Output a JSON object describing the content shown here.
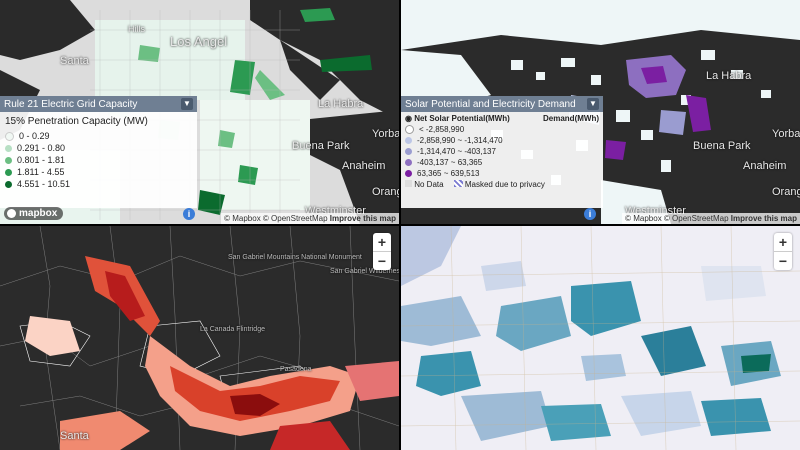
{
  "panels": {
    "grid_capacity": {
      "legend": {
        "title": "Rule 21 Electric Grid Capacity",
        "subtitle": "15% Penetration Capacity (MW)",
        "items": [
          {
            "label": "0 - 0.29",
            "color": "#f1f8f4"
          },
          {
            "label": "0.291 - 0.80",
            "color": "#b7dfc4"
          },
          {
            "label": "0.801 - 1.81",
            "color": "#6cbf83"
          },
          {
            "label": "1.811 - 4.55",
            "color": "#2c9a52"
          },
          {
            "label": "4.551 - 10.51",
            "color": "#0b6b2e"
          }
        ]
      },
      "places": [
        "Santa",
        "Hills",
        "Los Angel",
        "La Habra",
        "Buena Park",
        "Yorba",
        "Anaheim",
        "Orang",
        "Westminster"
      ],
      "attribution": {
        "mapbox": "© Mapbox",
        "osm": "© OpenStreetMap",
        "improve": "Improve this map"
      },
      "logo": "mapbox",
      "info": "i"
    },
    "solar_potential": {
      "legend": {
        "title": "Solar Potential and Electricity Demand",
        "header_left": "Net Solar Potential(MWh)",
        "header_right": "Demand(MWh)",
        "items": [
          {
            "label": "< -2,858,990",
            "color": "#ffffff"
          },
          {
            "label": "-2,858,990 ~ -1,314,470",
            "color": "#bcc6e6"
          },
          {
            "label": "-1,314,470 ~ -403,137",
            "color": "#9a9cd0"
          },
          {
            "label": "-403,137 ~ 63,365",
            "color": "#8d6fc0"
          },
          {
            "label": "63,365 ~ 639,513",
            "color": "#7b1fa2"
          }
        ],
        "no_data": "No Data",
        "masked": "Masked due to privacy"
      },
      "places": [
        "La Habra",
        "Yorba",
        "Buena Park",
        "Anaheim",
        "Orang",
        "Westminster"
      ],
      "attribution": {
        "mapbox": "© Mapbox",
        "osm": "© OpenStreetMap",
        "improve": "Improve this map"
      },
      "info": "i"
    },
    "red_map": {
      "places": [
        "San Gabriel Mountains National Monument",
        "San Gabriel Wilderness",
        "La Canada Flintridge",
        "Pasadena",
        "Santa"
      ],
      "zoom": {
        "in": "+",
        "out": "−"
      }
    },
    "teal_map": {
      "zoom": {
        "in": "+",
        "out": "−"
      }
    }
  }
}
